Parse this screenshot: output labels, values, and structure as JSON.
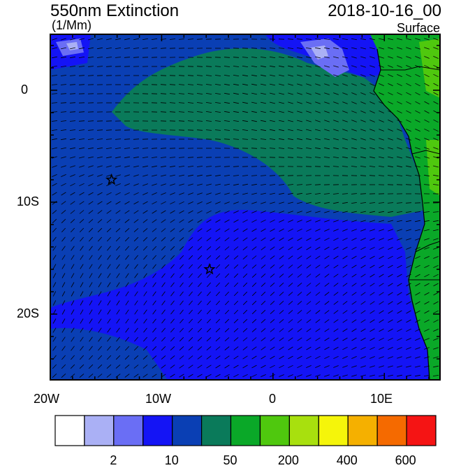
{
  "header": {
    "title": "550nm Extinction",
    "units": "(1/Mm)",
    "date": "2018-10-16_00",
    "level": "Surface"
  },
  "axes": {
    "lat_labels": [
      "0",
      "10S",
      "20S"
    ],
    "lon_labels": [
      "20W",
      "10W",
      "0",
      "10E"
    ]
  },
  "colorbar": {
    "colors": [
      "#ffffff",
      "#aab0f5",
      "#6a6ef5",
      "#1414f5",
      "#0a3fb4",
      "#0a7a5a",
      "#0aa828",
      "#4fc80e",
      "#a8e00e",
      "#f5f50a",
      "#f5b000",
      "#f56a00",
      "#f51414"
    ],
    "labels": [
      "2",
      "10",
      "50",
      "200",
      "400",
      "600"
    ]
  },
  "markers": [
    {
      "name": "star-1",
      "lon": -14.5,
      "lat": -8.0
    },
    {
      "name": "star-2",
      "lon": -5.7,
      "lat": -16.0
    }
  ]
}
